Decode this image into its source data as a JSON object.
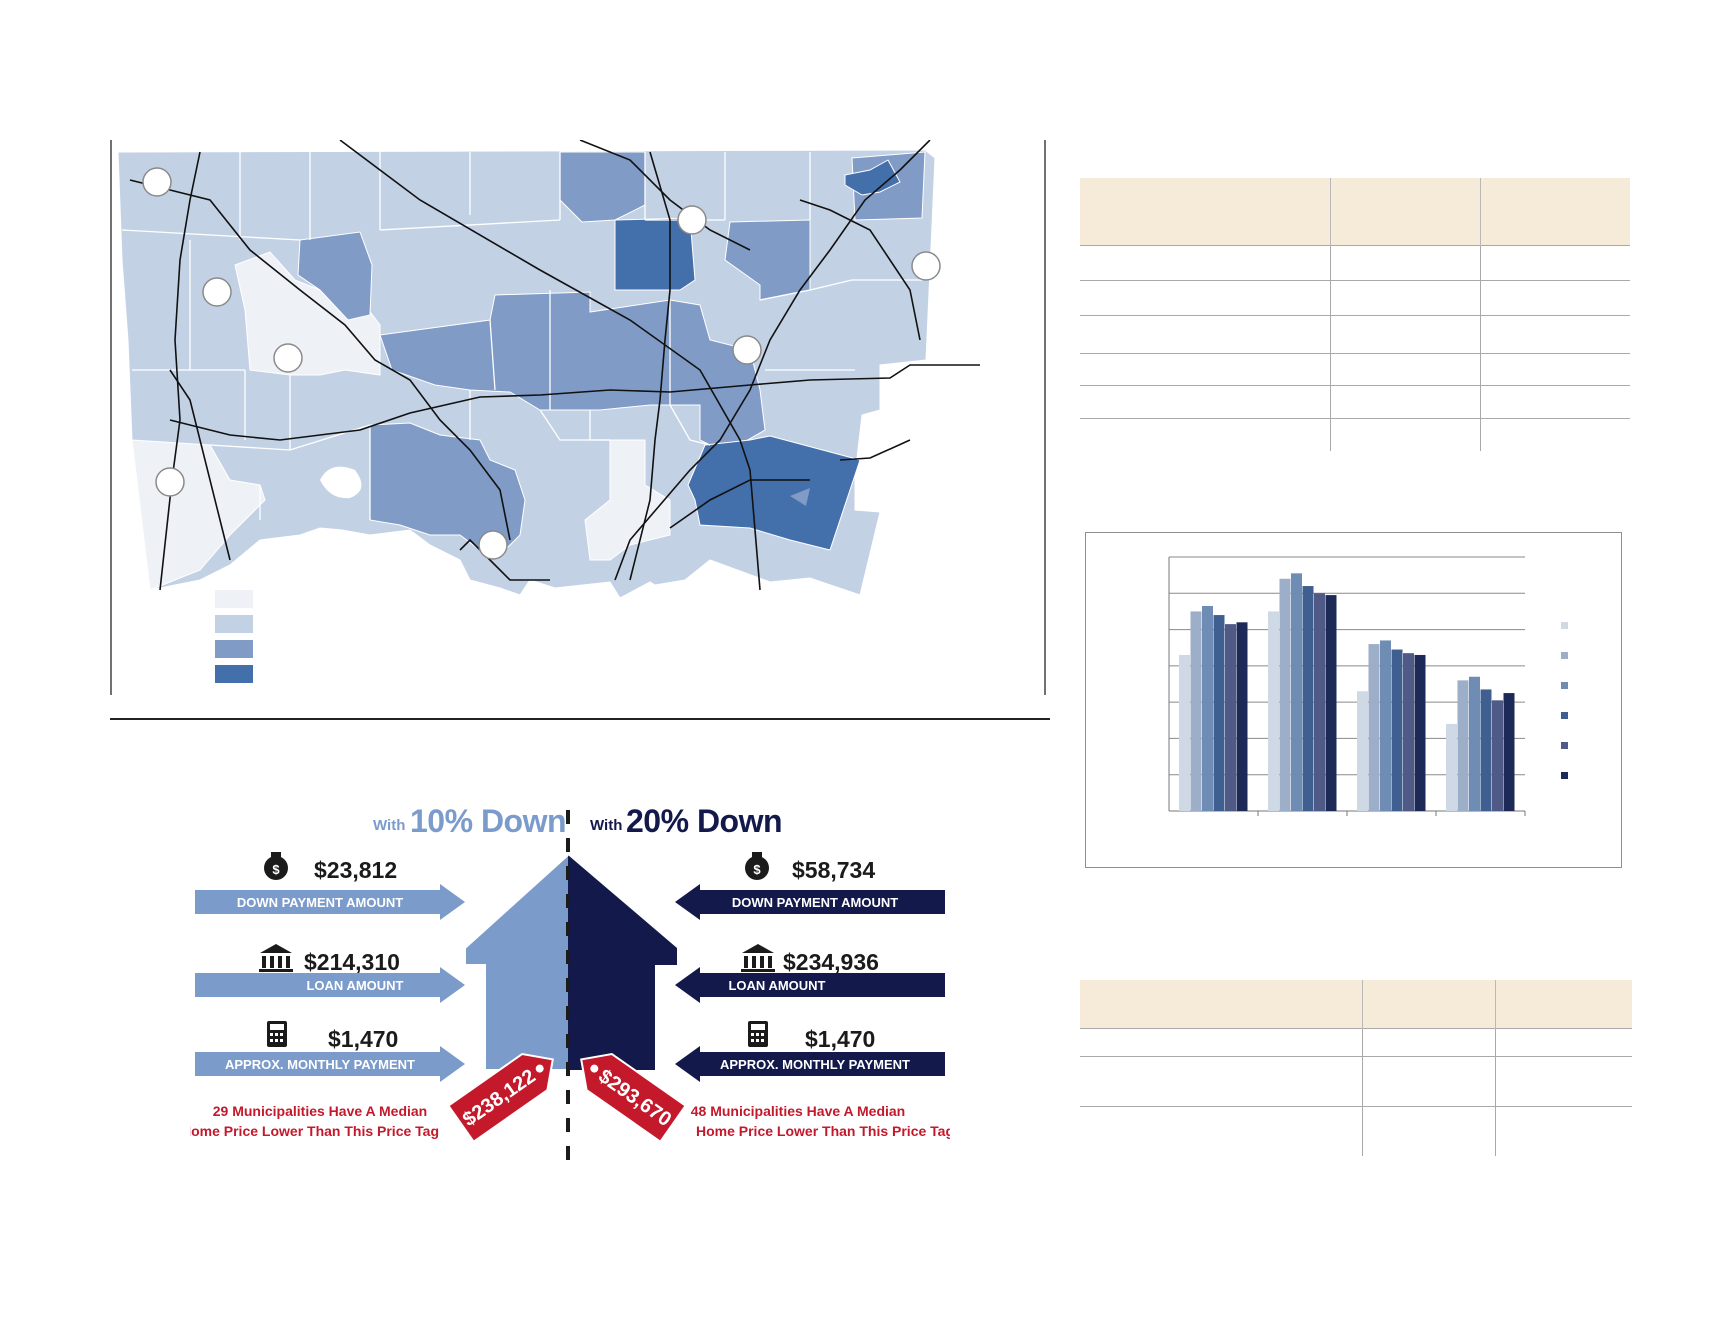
{
  "map": {
    "colors": {
      "class1": "#eef2f7",
      "class2": "#c3d1e5",
      "class3": "#7f9bc6",
      "class4": "#436faa",
      "border": "#ffffff",
      "roads": "#111111"
    },
    "legend": [
      "class1",
      "class2",
      "class3",
      "class4"
    ]
  },
  "chart_data": {
    "type": "bar",
    "categories": [
      "",
      "",
      "",
      ""
    ],
    "series": [
      {
        "values": [
          4.3,
          5.5,
          3.3,
          2.4
        ]
      },
      {
        "values": [
          5.5,
          6.4,
          4.6,
          3.6
        ]
      },
      {
        "values": [
          5.65,
          6.55,
          4.7,
          3.7
        ]
      },
      {
        "values": [
          5.4,
          6.2,
          4.45,
          3.35
        ]
      },
      {
        "values": [
          5.15,
          6.0,
          4.35,
          3.05
        ]
      },
      {
        "values": [
          5.2,
          5.95,
          4.3,
          3.25
        ]
      }
    ],
    "ylim": [
      0,
      7
    ],
    "grid": true,
    "legend": "right",
    "colors": [
      "#cfd9e6",
      "#9caec8",
      "#6f8db4",
      "#3e5f8f",
      "#4f5a86",
      "#1d2a57"
    ]
  },
  "infographic": {
    "left_heading": {
      "prefix": "With",
      "main": "10% Down"
    },
    "right_heading": {
      "prefix": "With",
      "main": "20% Down"
    },
    "left": {
      "down_payment": "$23,812",
      "down_payment_label": "DOWN PAYMENT AMOUNT",
      "loan": "$214,310",
      "loan_label": "LOAN AMOUNT",
      "monthly": "$1,470",
      "monthly_label": "APPROX. MONTHLY PAYMENT",
      "price_tag": "$238,122",
      "note_line1": "29 Municipalities Have A Median",
      "note_line2": "Home Price Lower Than This Price Tag"
    },
    "right": {
      "down_payment": "$58,734",
      "down_payment_label": "DOWN PAYMENT AMOUNT",
      "loan": "$234,936",
      "loan_label": "LOAN AMOUNT",
      "monthly": "$1,470",
      "monthly_label": "APPROX. MONTHLY PAYMENT",
      "price_tag": "$293,670",
      "note_line1": "48 Municipalities Have A Median",
      "note_line2": "Home Price Lower Than This Price Tag"
    },
    "colors": {
      "light": "#7b9bcb",
      "dark": "#13194a",
      "red": "#c4182b"
    }
  },
  "tables": {
    "top": {
      "header_color": "#f6ebd9",
      "columns": 3,
      "rows": 6
    },
    "bottom": {
      "header_color": "#f6ebd9",
      "columns": 3,
      "rows": 3
    }
  }
}
